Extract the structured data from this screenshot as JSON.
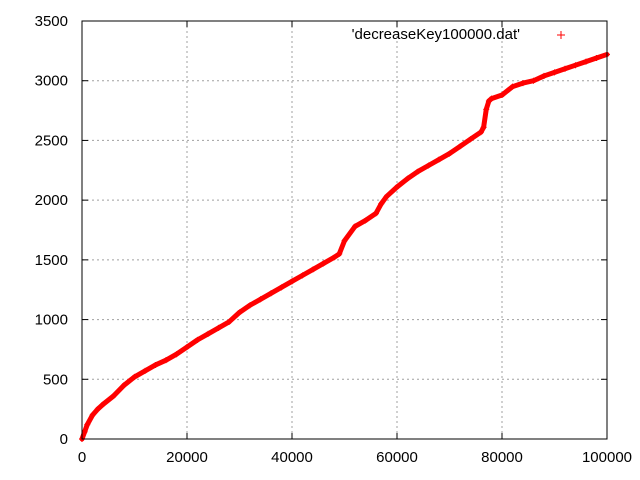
{
  "chart_data": {
    "type": "scatter",
    "title": "",
    "xlabel": "",
    "ylabel": "",
    "xlim": [
      0,
      100000
    ],
    "ylim": [
      0,
      3500
    ],
    "xticks": [
      0,
      20000,
      40000,
      60000,
      80000,
      100000
    ],
    "yticks": [
      0,
      500,
      1000,
      1500,
      2000,
      2500,
      3000,
      3500
    ],
    "xtick_labels": [
      "0",
      "20000",
      "40000",
      "60000",
      "80000",
      "100000"
    ],
    "ytick_labels": [
      "0",
      "500",
      "1000",
      "1500",
      "2000",
      "2500",
      "3000",
      "3500"
    ],
    "grid": true,
    "legend_position": "top-right",
    "marker": "+",
    "series": [
      {
        "name": "'decreaseKey100000.dat'",
        "color": "#ff0000",
        "x": [
          0,
          500,
          1000,
          2000,
          3000,
          4000,
          6000,
          8000,
          10000,
          12000,
          14000,
          16000,
          18000,
          20000,
          22000,
          24000,
          26000,
          28000,
          30000,
          32000,
          34000,
          36000,
          38000,
          40000,
          42000,
          44000,
          46000,
          48000,
          49000,
          50000,
          52000,
          54000,
          56000,
          57000,
          58000,
          60000,
          62000,
          64000,
          66000,
          68000,
          70000,
          72000,
          74000,
          76000,
          76500,
          77000,
          77500,
          78000,
          80000,
          82000,
          84000,
          86000,
          88000,
          90000,
          92000,
          94000,
          96000,
          98000,
          100000
        ],
        "y": [
          0,
          60,
          120,
          200,
          250,
          290,
          360,
          450,
          520,
          570,
          620,
          660,
          710,
          770,
          830,
          880,
          930,
          980,
          1060,
          1120,
          1170,
          1220,
          1270,
          1320,
          1370,
          1420,
          1470,
          1520,
          1550,
          1660,
          1780,
          1830,
          1890,
          1970,
          2030,
          2110,
          2180,
          2240,
          2290,
          2340,
          2390,
          2450,
          2510,
          2570,
          2610,
          2760,
          2830,
          2850,
          2880,
          2950,
          2980,
          3000,
          3040,
          3070,
          3100,
          3130,
          3160,
          3190,
          3220
        ]
      }
    ]
  }
}
